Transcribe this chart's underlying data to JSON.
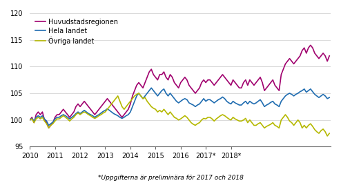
{
  "title": "",
  "footnote": "*Uppgifterna är preliminära för 2017 och 2018",
  "legend": [
    "Huvudstadsregionen",
    "Hela landet",
    "Övriga landet"
  ],
  "colors": [
    "#a0006e",
    "#1f6cb0",
    "#b5b800"
  ],
  "ylim": [
    95,
    120
  ],
  "yticks": [
    95,
    100,
    105,
    110,
    115,
    120
  ],
  "xlabel_ticks": [
    "2010",
    "2011",
    "2012",
    "2013",
    "2014",
    "2015",
    "2016",
    "2017*",
    "2018*"
  ],
  "line_width": 1.2,
  "huvudstad": [
    100.0,
    100.5,
    99.5,
    101.0,
    101.5,
    101.0,
    101.5,
    100.0,
    99.5,
    98.5,
    99.0,
    99.5,
    100.5,
    101.0,
    101.0,
    101.5,
    102.0,
    101.5,
    101.0,
    100.5,
    101.0,
    101.5,
    102.5,
    103.0,
    102.5,
    103.0,
    103.5,
    103.0,
    102.5,
    102.0,
    101.5,
    101.0,
    101.5,
    102.0,
    102.5,
    103.0,
    103.5,
    104.0,
    103.5,
    103.0,
    102.5,
    102.0,
    101.5,
    101.0,
    100.5,
    101.0,
    101.5,
    102.0,
    103.0,
    104.5,
    105.5,
    106.5,
    107.0,
    106.5,
    106.0,
    107.0,
    108.0,
    109.0,
    109.5,
    108.5,
    108.0,
    107.5,
    108.5,
    108.5,
    109.0,
    108.0,
    107.5,
    108.5,
    108.0,
    107.0,
    106.5,
    106.0,
    107.0,
    107.5,
    108.0,
    107.5,
    106.5,
    106.0,
    105.5,
    105.0,
    105.5,
    106.0,
    107.0,
    107.5,
    107.0,
    107.5,
    107.5,
    107.0,
    106.5,
    107.0,
    107.5,
    108.0,
    108.5,
    108.0,
    107.5,
    107.0,
    106.5,
    107.5,
    107.0,
    106.5,
    106.0,
    106.0,
    107.0,
    107.5,
    106.5,
    107.5,
    107.0,
    106.5,
    107.0,
    107.5,
    108.0,
    107.0,
    105.5,
    106.0,
    106.5,
    107.0,
    107.5,
    106.5,
    106.0,
    105.5,
    108.5,
    109.5,
    110.5,
    111.0,
    111.5,
    111.0,
    110.5,
    111.0,
    111.5,
    112.0,
    113.0,
    113.5,
    112.5,
    113.5,
    114.0,
    113.5,
    112.5,
    112.0,
    111.5,
    112.0,
    112.5,
    112.0,
    111.0,
    112.0
  ],
  "hela": [
    100.0,
    100.3,
    99.8,
    100.5,
    100.8,
    100.5,
    100.8,
    100.2,
    99.8,
    99.0,
    99.3,
    99.6,
    100.2,
    100.5,
    100.5,
    100.8,
    101.0,
    100.8,
    100.5,
    100.2,
    100.5,
    100.8,
    101.2,
    101.5,
    101.2,
    101.5,
    101.8,
    101.5,
    101.2,
    101.0,
    100.8,
    100.5,
    100.8,
    101.0,
    101.3,
    101.6,
    101.8,
    102.1,
    101.8,
    101.5,
    101.2,
    101.0,
    100.8,
    100.5,
    100.3,
    100.5,
    100.8,
    101.0,
    101.5,
    102.5,
    103.5,
    104.5,
    105.0,
    104.5,
    104.0,
    104.5,
    105.0,
    105.5,
    106.0,
    105.5,
    105.0,
    104.5,
    105.0,
    105.5,
    105.8,
    105.0,
    104.5,
    105.0,
    104.5,
    104.0,
    103.5,
    103.2,
    103.5,
    103.8,
    104.0,
    103.8,
    103.2,
    103.0,
    102.8,
    102.5,
    102.8,
    103.0,
    103.5,
    104.0,
    103.5,
    103.8,
    103.8,
    103.5,
    103.2,
    103.5,
    103.8,
    104.0,
    104.3,
    104.0,
    103.5,
    103.2,
    103.0,
    103.5,
    103.2,
    103.0,
    102.8,
    102.8,
    103.2,
    103.5,
    103.0,
    103.5,
    103.2,
    103.0,
    103.2,
    103.5,
    103.8,
    103.2,
    102.5,
    102.8,
    103.0,
    103.3,
    103.5,
    103.0,
    102.8,
    102.5,
    103.5,
    104.0,
    104.5,
    104.8,
    105.0,
    104.8,
    104.5,
    104.8,
    105.0,
    105.3,
    105.5,
    105.8,
    105.2,
    105.5,
    105.8,
    105.3,
    104.8,
    104.5,
    104.2,
    104.5,
    104.8,
    104.5,
    104.0,
    104.2
  ],
  "ovriga": [
    100.0,
    100.2,
    99.5,
    100.2,
    100.5,
    100.2,
    100.5,
    99.8,
    99.3,
    98.5,
    99.0,
    99.3,
    99.8,
    100.2,
    100.2,
    100.5,
    100.8,
    100.5,
    100.2,
    99.8,
    100.2,
    100.5,
    101.0,
    101.3,
    101.0,
    101.3,
    101.5,
    101.3,
    101.0,
    100.8,
    100.5,
    100.3,
    100.5,
    100.8,
    101.0,
    101.3,
    101.5,
    102.0,
    102.5,
    103.0,
    103.5,
    104.0,
    104.5,
    103.5,
    102.5,
    102.0,
    102.5,
    103.0,
    103.5,
    104.0,
    104.5,
    104.8,
    105.0,
    104.5,
    104.0,
    104.2,
    103.5,
    103.0,
    102.5,
    102.2,
    102.0,
    101.5,
    101.8,
    101.5,
    102.0,
    101.5,
    101.0,
    101.5,
    101.0,
    100.5,
    100.3,
    100.0,
    100.2,
    100.5,
    100.8,
    100.5,
    100.0,
    99.5,
    99.2,
    99.0,
    99.3,
    99.5,
    100.0,
    100.3,
    100.2,
    100.5,
    100.5,
    100.2,
    99.8,
    100.2,
    100.5,
    100.8,
    101.0,
    100.8,
    100.5,
    100.2,
    100.0,
    100.5,
    100.2,
    100.0,
    99.8,
    99.8,
    100.0,
    100.3,
    99.5,
    100.0,
    99.5,
    99.0,
    99.0,
    99.3,
    99.5,
    99.0,
    98.5,
    98.8,
    99.0,
    99.2,
    99.5,
    99.0,
    98.8,
    98.5,
    100.0,
    100.5,
    101.0,
    100.5,
    99.8,
    99.5,
    99.0,
    99.5,
    100.0,
    99.5,
    98.5,
    99.0,
    98.5,
    99.0,
    99.3,
    98.8,
    98.2,
    97.8,
    97.5,
    98.0,
    98.3,
    97.8,
    97.0,
    97.5
  ]
}
